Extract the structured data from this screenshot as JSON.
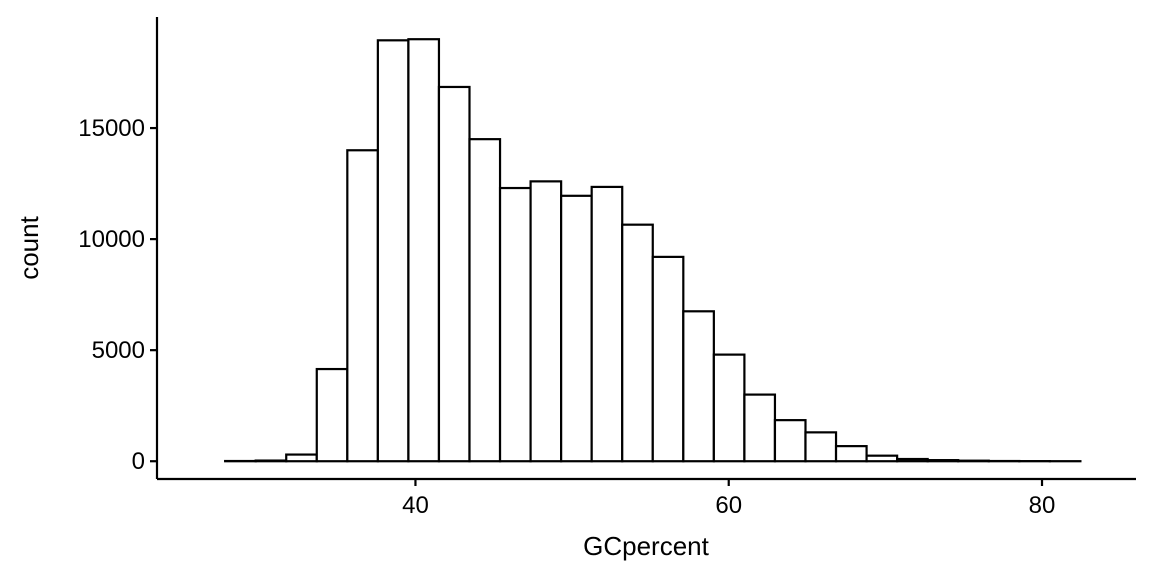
{
  "chart_data": {
    "type": "bar",
    "subtype": "histogram",
    "xlabel": "GCpercent",
    "ylabel": "count",
    "xlim": [
      23.5,
      86
    ],
    "ylim": [
      -800,
      20000
    ],
    "x_ticks": [
      40,
      60,
      80
    ],
    "y_ticks": [
      0,
      5000,
      10000,
      15000
    ],
    "bin_width": 1.95,
    "bins": [
      {
        "x0": 25.9,
        "value": 0
      },
      {
        "x0": 27.85,
        "value": 10
      },
      {
        "x0": 29.8,
        "value": 30
      },
      {
        "x0": 31.75,
        "value": 300
      },
      {
        "x0": 33.7,
        "value": 4150
      },
      {
        "x0": 35.65,
        "value": 14000
      },
      {
        "x0": 37.6,
        "value": 18950
      },
      {
        "x0": 39.55,
        "value": 19000
      },
      {
        "x0": 41.5,
        "value": 16850
      },
      {
        "x0": 43.45,
        "value": 14500
      },
      {
        "x0": 45.4,
        "value": 12300
      },
      {
        "x0": 47.35,
        "value": 12600
      },
      {
        "x0": 49.3,
        "value": 11950
      },
      {
        "x0": 51.25,
        "value": 12350
      },
      {
        "x0": 53.2,
        "value": 10650
      },
      {
        "x0": 55.15,
        "value": 9200
      },
      {
        "x0": 57.1,
        "value": 6750
      },
      {
        "x0": 59.05,
        "value": 4800
      },
      {
        "x0": 61.0,
        "value": 3000
      },
      {
        "x0": 62.95,
        "value": 1850
      },
      {
        "x0": 64.9,
        "value": 1300
      },
      {
        "x0": 66.85,
        "value": 680
      },
      {
        "x0": 68.8,
        "value": 250
      },
      {
        "x0": 70.75,
        "value": 100
      },
      {
        "x0": 72.7,
        "value": 50
      },
      {
        "x0": 74.65,
        "value": 25
      },
      {
        "x0": 76.6,
        "value": 10
      },
      {
        "x0": 78.55,
        "value": 5
      },
      {
        "x0": 80.5,
        "value": 2
      },
      {
        "x0": 82.45,
        "value": 0
      }
    ],
    "grid": false,
    "legend": "none",
    "bar_fill": "#ffffff",
    "bar_stroke": "#000000"
  }
}
